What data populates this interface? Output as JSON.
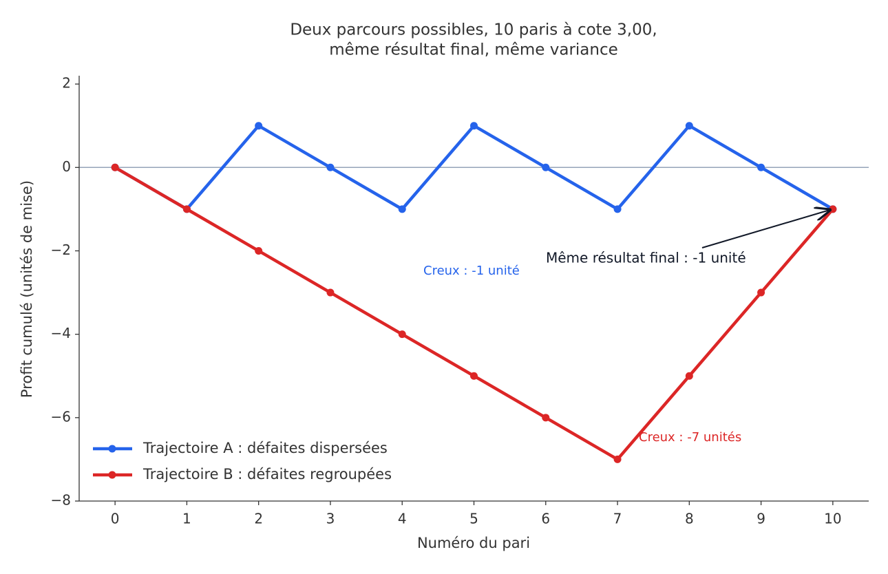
{
  "chart_data": {
    "type": "line",
    "title": [
      "Deux parcours possibles, 10 paris à cote 3,00,",
      "même résultat final, même variance"
    ],
    "xlabel": "Numéro du pari",
    "ylabel": "Profit cumulé (unités de mise)",
    "x": [
      0,
      1,
      2,
      3,
      4,
      5,
      6,
      7,
      8,
      9,
      10
    ],
    "series": [
      {
        "name": "Trajectoire A : défaites dispersées",
        "color": "#2563eb",
        "values": [
          0,
          -1,
          1,
          0,
          -1,
          1,
          0,
          -1,
          1,
          0,
          -1
        ]
      },
      {
        "name": "Trajectoire B : défaites regroupées",
        "color": "#dc2626",
        "values": [
          0,
          -1,
          -2,
          -3,
          -4,
          -5,
          -6,
          -7,
          -5,
          -3,
          -1
        ]
      }
    ],
    "xlim": [
      -0.5,
      10.5
    ],
    "ylim": [
      -8,
      2.2
    ],
    "xticks": [
      0,
      1,
      2,
      3,
      4,
      5,
      6,
      7,
      8,
      9,
      10
    ],
    "yticks": [
      {
        "value": -8,
        "label": "−8"
      },
      {
        "value": -6,
        "label": "−6"
      },
      {
        "value": -4,
        "label": "−4"
      },
      {
        "value": -2,
        "label": "−2"
      },
      0,
      2
    ],
    "hline": 0,
    "hline_color": "#94a3b8",
    "annotations": [
      {
        "text": "Même résultat final : -1 unité",
        "color": "#111827"
      },
      {
        "text": "Creux : -1 unité",
        "color": "#2563eb"
      },
      {
        "text": "Creux : -7 unités",
        "color": "#dc2626"
      }
    ],
    "legend": "lower left"
  }
}
